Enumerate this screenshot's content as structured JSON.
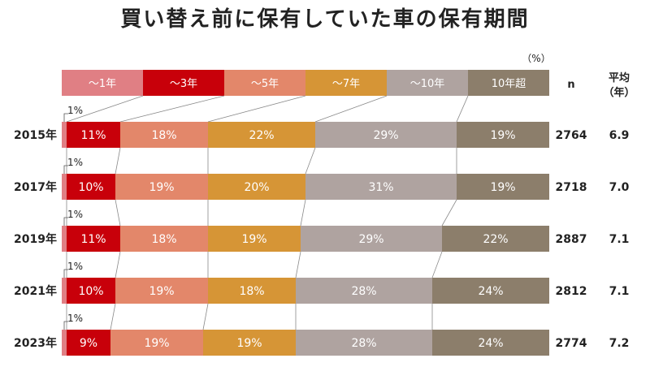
{
  "chart_data": {
    "type": "bar",
    "orientation": "horizontal-stacked-100",
    "title": "買い替え前に保有していた車の保有期間",
    "unit": "（%）",
    "categories": [
      "2015年",
      "2017年",
      "2019年",
      "2021年",
      "2023年"
    ],
    "series": [
      {
        "name": "～1年",
        "color": "#E07F84",
        "values": [
          1,
          1,
          1,
          1,
          1
        ]
      },
      {
        "name": "～3年",
        "color": "#C8000A",
        "values": [
          11,
          10,
          11,
          10,
          9
        ]
      },
      {
        "name": "～5年",
        "color": "#E3876A",
        "values": [
          18,
          19,
          18,
          19,
          19
        ]
      },
      {
        "name": "～7年",
        "color": "#D69536",
        "values": [
          22,
          20,
          19,
          18,
          19
        ]
      },
      {
        "name": "～10年",
        "color": "#AFA3A0",
        "values": [
          29,
          31,
          29,
          28,
          28
        ]
      },
      {
        "name": "10年超",
        "color": "#8C7E6B",
        "values": [
          19,
          19,
          22,
          24,
          24
        ]
      }
    ],
    "small_labels": [
      "1%",
      "1%",
      "1%",
      "1%",
      "1%"
    ],
    "n_header": "n",
    "n_values": [
      2764,
      2718,
      2887,
      2812,
      2774
    ],
    "avg_header": [
      "平均",
      "（年）"
    ],
    "avg_values": [
      "6.9",
      "7.0",
      "7.1",
      "7.1",
      "7.2"
    ],
    "xlim": [
      0,
      100
    ],
    "legend_position": "top"
  }
}
